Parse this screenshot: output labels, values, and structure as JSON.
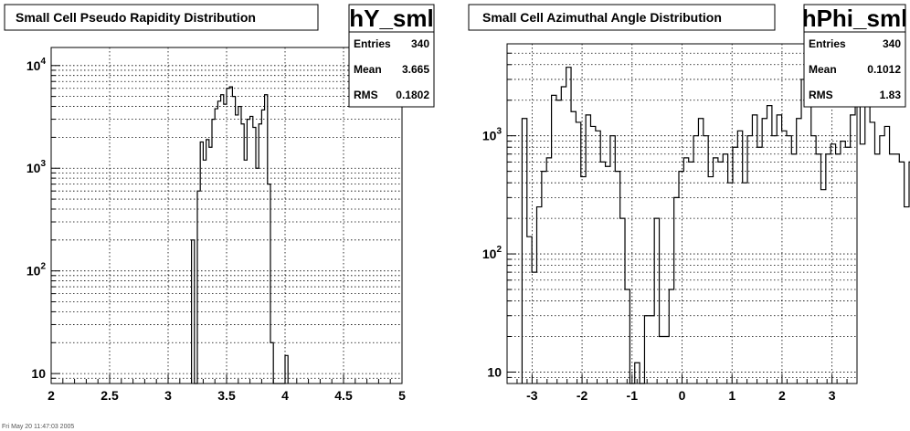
{
  "footer": {
    "text": "Fri May 20 11:47:03 2005"
  },
  "chart_data": [
    {
      "type": "histogram",
      "title": "Small Cell Pseudo Rapidity Distribution",
      "stats": {
        "name": "hY_sml",
        "rows": [
          {
            "label": "Entries",
            "value": "340"
          },
          {
            "label": "Mean",
            "value": "3.665"
          },
          {
            "label": "RMS",
            "value": "0.1802"
          }
        ]
      },
      "xlim": [
        2,
        5
      ],
      "ylim": [
        8,
        15000
      ],
      "ylog": true,
      "grid": true,
      "xticks": [
        {
          "v": 2,
          "label": "2"
        },
        {
          "v": 2.5,
          "label": "2.5"
        },
        {
          "v": 3,
          "label": "3"
        },
        {
          "v": 3.5,
          "label": "3.5"
        },
        {
          "v": 4,
          "label": "4"
        },
        {
          "v": 4.5,
          "label": "4.5"
        },
        {
          "v": 5,
          "label": "5"
        }
      ],
      "yticks": [
        {
          "v": 10,
          "label": "10"
        },
        {
          "v": 100,
          "label": "10",
          "exp": "2"
        },
        {
          "v": 1000,
          "label": "10",
          "exp": "3"
        },
        {
          "v": 10000,
          "label": "10",
          "exp": "4"
        }
      ],
      "bin_start": 3.2,
      "bin_width": 0.025,
      "values": [
        200,
        0,
        600,
        1800,
        1200,
        1900,
        1600,
        3000,
        3800,
        4500,
        5200,
        4200,
        6000,
        6200,
        5000,
        3300,
        4000,
        2700,
        1200,
        3000,
        3200,
        2500,
        1000,
        2700,
        3700,
        5200,
        700,
        20,
        0,
        0,
        0,
        0,
        15
      ]
    },
    {
      "type": "histogram",
      "title": "Small Cell Azimuthal Angle Distribution",
      "stats": {
        "name": "hPhi_sml",
        "rows": [
          {
            "label": "Entries",
            "value": "340"
          },
          {
            "label": "Mean",
            "value": "0.1012"
          },
          {
            "label": "RMS",
            "value": "1.83"
          }
        ]
      },
      "xlim": [
        -3.5,
        3.5
      ],
      "ylim": [
        8,
        6000
      ],
      "ylog": true,
      "grid": true,
      "xticks": [
        {
          "v": -3,
          "label": "-3"
        },
        {
          "v": -2,
          "label": "-2"
        },
        {
          "v": -1,
          "label": "-1"
        },
        {
          "v": 0,
          "label": "0"
        },
        {
          "v": 1,
          "label": "1"
        },
        {
          "v": 2,
          "label": "2"
        },
        {
          "v": 3,
          "label": "3"
        }
      ],
      "yticks": [
        {
          "v": 10,
          "label": "10"
        },
        {
          "v": 100,
          "label": "10",
          "exp": "2"
        },
        {
          "v": 1000,
          "label": "10",
          "exp": "3"
        }
      ],
      "bin_start": -3.2,
      "bin_width": 0.098,
      "values": [
        1400,
        140,
        70,
        250,
        500,
        650,
        2200,
        2000,
        2600,
        3800,
        1600,
        1300,
        450,
        1500,
        1200,
        1100,
        600,
        550,
        1000,
        500,
        200,
        50,
        0,
        12,
        0,
        30,
        30,
        200,
        20,
        20,
        50,
        300,
        500,
        650,
        600,
        1000,
        1400,
        1000,
        450,
        650,
        600,
        700,
        400,
        800,
        1100,
        400,
        1000,
        1500,
        800,
        1400,
        1800,
        1000,
        1500,
        1100,
        1000,
        700,
        1400,
        3000,
        1900,
        1000,
        700,
        350,
        700,
        850,
        700,
        900,
        800,
        1500,
        2000,
        850,
        2800,
        1300,
        700,
        1000,
        1200,
        700,
        700,
        600,
        250,
        600,
        350,
        600,
        500,
        350
      ]
    }
  ]
}
